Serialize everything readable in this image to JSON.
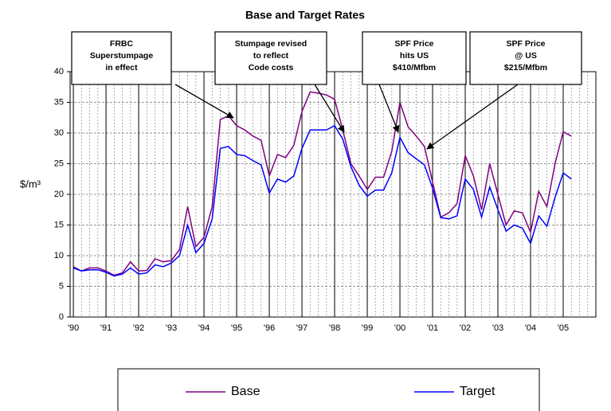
{
  "chart_data": {
    "type": "line",
    "title": "Base and Target Rates",
    "y_label": "$/m³",
    "x": [
      1990,
      1990.25,
      1990.5,
      1990.75,
      1991,
      1991.25,
      1991.5,
      1991.75,
      1992,
      1992.25,
      1992.5,
      1992.75,
      1993,
      1993.25,
      1993.5,
      1993.75,
      1994,
      1994.25,
      1994.5,
      1994.75,
      1995,
      1995.25,
      1995.5,
      1995.75,
      1996,
      1996.25,
      1996.5,
      1996.75,
      1997,
      1997.25,
      1997.5,
      1997.75,
      1998,
      1998.25,
      1998.5,
      1998.75,
      1999,
      1999.25,
      1999.5,
      1999.75,
      2000,
      2000.25,
      2000.5,
      2000.75,
      2001,
      2001.25,
      2001.5,
      2001.75,
      2002,
      2002.25,
      2002.5,
      2002.75,
      2003,
      2003.25,
      2003.5,
      2003.75,
      2004,
      2004.25,
      2004.5,
      2004.75,
      2005,
      2005.25
    ],
    "series": [
      {
        "name": "Base",
        "color": "#800080",
        "values": [
          8.2,
          7.5,
          8,
          8,
          7.5,
          6.8,
          7.2,
          9,
          7.5,
          7.6,
          9.5,
          9,
          9.2,
          11,
          18,
          11.5,
          13,
          18,
          32.2,
          32.8,
          31.2,
          30.5,
          29.5,
          28.8,
          23,
          26.5,
          26,
          28,
          33.5,
          36.7,
          36.5,
          36.2,
          35.5,
          30.5,
          25,
          23,
          20.8,
          22.8,
          22.8,
          27,
          35,
          31,
          29.5,
          27.8,
          22,
          16.3,
          17,
          18.5,
          26.3,
          23,
          17.5,
          25,
          20,
          15,
          17.3,
          17,
          13.8,
          20.5,
          18,
          25,
          30.2,
          29.5
        ]
      },
      {
        "name": "Target",
        "color": "#0000ff",
        "values": [
          8,
          7.5,
          7.7,
          7.7,
          7.3,
          6.7,
          7,
          8,
          7,
          7.2,
          8.5,
          8.2,
          8.8,
          10,
          15,
          10.5,
          12,
          16,
          27.5,
          27.8,
          26.5,
          26.3,
          25.5,
          24.8,
          20.2,
          22.5,
          22,
          23,
          27.5,
          30.5,
          30.5,
          30.5,
          31.2,
          29,
          24.5,
          21.5,
          19.7,
          20.7,
          20.7,
          23.5,
          29.3,
          26.8,
          25.8,
          24.8,
          21,
          16.2,
          16,
          16.5,
          22.5,
          20.8,
          16.3,
          21.2,
          17.5,
          14,
          15,
          14.5,
          12,
          16.5,
          14.8,
          19.5,
          23.5,
          22.5
        ]
      }
    ],
    "xlim": [
      1989.9,
      2006
    ],
    "xticks": [
      {
        "value": 1990,
        "label": "'90"
      },
      {
        "value": 1991,
        "label": "'91"
      },
      {
        "value": 1992,
        "label": "'92"
      },
      {
        "value": 1993,
        "label": "'93"
      },
      {
        "value": 1994,
        "label": "'94"
      },
      {
        "value": 1995,
        "label": "'95"
      },
      {
        "value": 1996,
        "label": "'96"
      },
      {
        "value": 1997,
        "label": "'97"
      },
      {
        "value": 1998,
        "label": "'98"
      },
      {
        "value": 1999,
        "label": "'99"
      },
      {
        "value": 2000,
        "label": "'00"
      },
      {
        "value": 2001,
        "label": "'01"
      },
      {
        "value": 2002,
        "label": "'02"
      },
      {
        "value": 2003,
        "label": "'03"
      },
      {
        "value": 2004,
        "label": "'04"
      },
      {
        "value": 2005,
        "label": "'05"
      }
    ],
    "ylim": [
      0,
      40
    ],
    "yticks": [
      0,
      5,
      10,
      15,
      20,
      25,
      30,
      35,
      40
    ],
    "grid": true,
    "annotations": [
      {
        "lines": [
          "FRBC",
          "Superstumpage",
          "in effect"
        ]
      },
      {
        "lines": [
          "Stumpage revised",
          "to reflect",
          "Code costs"
        ]
      },
      {
        "lines": [
          "SPF Price",
          "hits US",
          "$410/Mfbm"
        ]
      },
      {
        "lines": [
          "SPF Price",
          "@ US",
          "$215/Mfbm"
        ]
      }
    ],
    "legend": "bottom"
  }
}
